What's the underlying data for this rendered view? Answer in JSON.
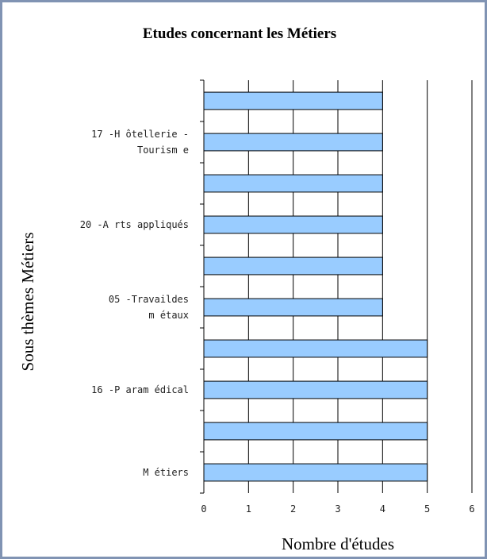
{
  "chart_data": {
    "type": "bar",
    "orientation": "horizontal",
    "title": "Etudes concernant les Métiers",
    "xlabel": "Nombre d'études",
    "ylabel": "Sous thèmes Métiers",
    "xlim": [
      0,
      6
    ],
    "xticks": [
      0,
      1,
      2,
      3,
      4,
      5,
      6
    ],
    "grid": true,
    "categories": [
      "",
      "17 - Hôtellerie - Tourisme",
      "",
      "20 - Arts appliqués",
      "",
      "05 - Travail des métaux",
      "",
      "16 - Paramédical",
      "",
      "Métiers"
    ],
    "category_label_lines": [
      [],
      [
        "17 -H ôtellerie -",
        "Tourism e"
      ],
      [],
      [
        "20 -A rts appliqués"
      ],
      [],
      [
        "05 -Travaildes",
        "m étaux"
      ],
      [],
      [
        "16 -P aram édical"
      ],
      [],
      [
        "M étiers"
      ]
    ],
    "values": [
      4,
      4,
      4,
      4,
      4,
      4,
      5,
      5,
      5,
      5
    ],
    "bar_color": "#99ccff",
    "border_color": "#8093b3"
  }
}
